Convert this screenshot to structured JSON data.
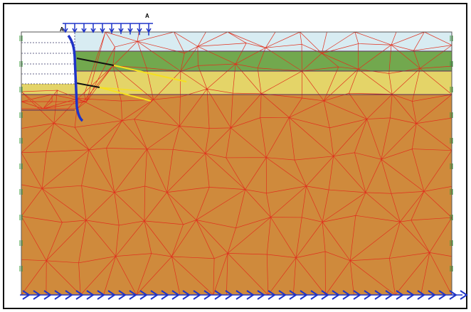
{
  "labels": [
    "A",
    "A"
  ]
}
